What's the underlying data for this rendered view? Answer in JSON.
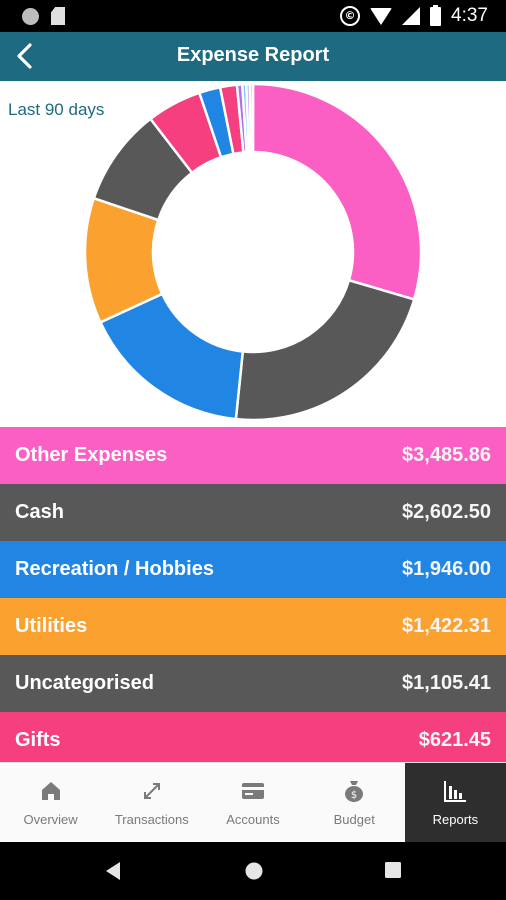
{
  "status_bar": {
    "time": "4:37"
  },
  "app_bar": {
    "title": "Expense Report"
  },
  "report": {
    "period": "Last 90 days",
    "categories": [
      {
        "name": "Other Expenses",
        "amount": "$3,485.86",
        "value": 3485.86,
        "color": "#fc5fc4"
      },
      {
        "name": "Cash",
        "amount": "$2,602.50",
        "value": 2602.5,
        "color": "#585858"
      },
      {
        "name": "Recreation / Hobbies",
        "amount": "$1,946.00",
        "value": 1946.0,
        "color": "#2185e4"
      },
      {
        "name": "Utilities",
        "amount": "$1,422.31",
        "value": 1422.31,
        "color": "#fba130"
      },
      {
        "name": "Uncategorised",
        "amount": "$1,105.41",
        "value": 1105.41,
        "color": "#585858"
      },
      {
        "name": "Gifts",
        "amount": "$621.45",
        "value": 621.45,
        "color": "#f53f7f"
      }
    ],
    "small_segments": [
      {
        "value": 240,
        "color": "#2185e4"
      },
      {
        "value": 190,
        "color": "#f53f7f"
      },
      {
        "value": 60,
        "color": "#b06ee8"
      },
      {
        "value": 45,
        "color": "#7cc4ff"
      },
      {
        "value": 40,
        "color": "#c0a0f0"
      },
      {
        "value": 35,
        "color": "#c8d830"
      }
    ]
  },
  "bottom_nav": [
    {
      "label": "Overview",
      "icon": "home-icon",
      "active": false
    },
    {
      "label": "Transactions",
      "icon": "transfer-arrows-icon",
      "active": false
    },
    {
      "label": "Accounts",
      "icon": "card-icon",
      "active": false
    },
    {
      "label": "Budget",
      "icon": "money-bag-icon",
      "active": false
    },
    {
      "label": "Reports",
      "icon": "bar-chart-icon",
      "active": true
    }
  ]
}
